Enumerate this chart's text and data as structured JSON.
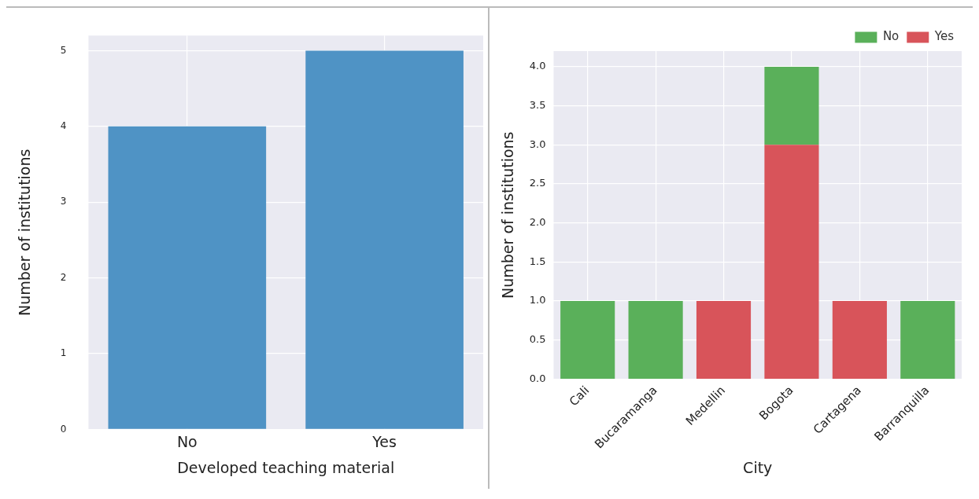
{
  "chart_data": [
    {
      "type": "bar",
      "xlabel": "Developed teaching material",
      "ylabel": "Number of institutions",
      "categories": [
        "No",
        "Yes"
      ],
      "values": [
        4,
        5
      ],
      "color": "#4f93c5",
      "ylim": [
        0,
        5.2
      ],
      "yticks": [
        0,
        1,
        2,
        3,
        4,
        5
      ],
      "grid": true
    },
    {
      "type": "bar",
      "xlabel": "City",
      "ylabel": "Number of institutions",
      "categories": [
        "Cali",
        "Bucaramanga",
        "Medellin",
        "Bogota",
        "Cartagena",
        "Barranquilla"
      ],
      "stacked": true,
      "legend": "top right",
      "series": [
        {
          "name": "Yes",
          "color": "#d8545a",
          "values": [
            0,
            0,
            1,
            3,
            1,
            0
          ]
        },
        {
          "name": "No",
          "color": "#5ab05a",
          "values": [
            1,
            1,
            0,
            1,
            0,
            1
          ]
        }
      ],
      "ylim": [
        0,
        4.2
      ],
      "yticks": [
        {
          "value": 0,
          "label": "0.0"
        },
        {
          "value": 0.5,
          "label": "0.5"
        },
        {
          "value": 1,
          "label": "1.0"
        },
        {
          "value": 1.5,
          "label": "1.5"
        },
        {
          "value": 2,
          "label": "2.0"
        },
        {
          "value": 2.5,
          "label": "2.5"
        },
        {
          "value": 3,
          "label": "3.0"
        },
        {
          "value": 3.5,
          "label": "3.5"
        },
        {
          "value": 4,
          "label": "4.0"
        }
      ],
      "grid": true
    }
  ]
}
